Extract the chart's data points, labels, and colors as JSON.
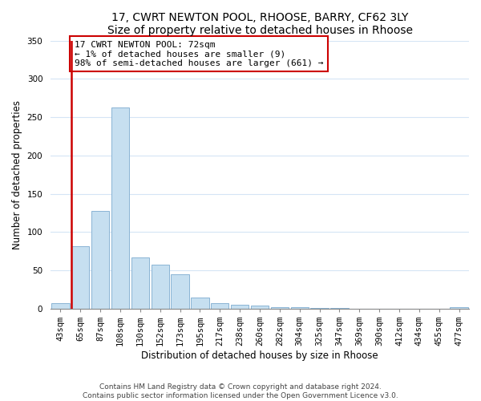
{
  "title": "17, CWRT NEWTON POOL, RHOOSE, BARRY, CF62 3LY",
  "subtitle": "Size of property relative to detached houses in Rhoose",
  "xlabel": "Distribution of detached houses by size in Rhoose",
  "ylabel": "Number of detached properties",
  "bar_labels": [
    "43sqm",
    "65sqm",
    "87sqm",
    "108sqm",
    "130sqm",
    "152sqm",
    "173sqm",
    "195sqm",
    "217sqm",
    "238sqm",
    "260sqm",
    "282sqm",
    "304sqm",
    "325sqm",
    "347sqm",
    "369sqm",
    "390sqm",
    "412sqm",
    "434sqm",
    "455sqm",
    "477sqm"
  ],
  "bar_values": [
    7,
    82,
    128,
    263,
    67,
    57,
    45,
    15,
    7,
    5,
    4,
    2,
    2,
    1,
    1,
    0,
    0,
    0,
    0,
    0,
    2
  ],
  "bar_color": "#c6dff0",
  "bar_edge_color": "#8ab4d4",
  "vline_color": "#cc0000",
  "annotation_text": "17 CWRT NEWTON POOL: 72sqm\n← 1% of detached houses are smaller (9)\n98% of semi-detached houses are larger (661) →",
  "annotation_box_color": "#ffffff",
  "annotation_box_edge": "#cc0000",
  "ylim": [
    0,
    350
  ],
  "yticks": [
    0,
    50,
    100,
    150,
    200,
    250,
    300,
    350
  ],
  "footer_line1": "Contains HM Land Registry data © Crown copyright and database right 2024.",
  "footer_line2": "Contains public sector information licensed under the Open Government Licence v3.0.",
  "title_fontsize": 10,
  "xlabel_fontsize": 8.5,
  "ylabel_fontsize": 8.5,
  "tick_fontsize": 7.5,
  "annotation_fontsize": 8,
  "footer_fontsize": 6.5,
  "grid_color": "#d5e5f5"
}
